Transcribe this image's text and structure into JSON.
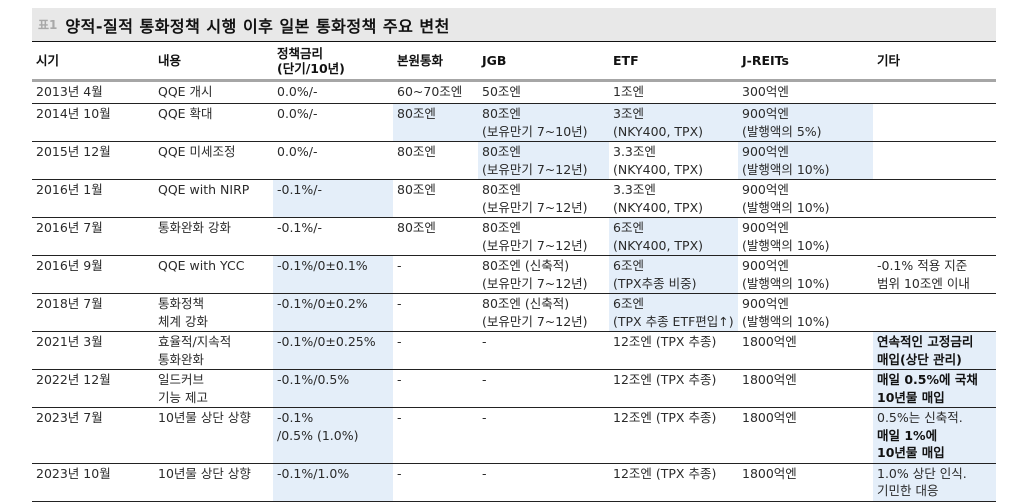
{
  "title": {
    "tag": "표1",
    "text": "양적-질적 통화정책 시행 이후 일본 통화정책 주요 변천"
  },
  "table": {
    "headers": [
      {
        "label": "시기"
      },
      {
        "label": "내용"
      },
      {
        "label": "정책금리",
        "label2": "(단기/10년)"
      },
      {
        "label": "본원통화"
      },
      {
        "label": "JGB"
      },
      {
        "label": "ETF"
      },
      {
        "label": "J-REITs"
      },
      {
        "label": "기타"
      }
    ],
    "highlight_color": "#e4eef9",
    "rows": [
      {
        "period": "2013년 4월",
        "content": [
          "QQE 개시"
        ],
        "rate": [
          "0.0%/-"
        ],
        "base": "60~70조엔",
        "jgb": [
          "50조엔"
        ],
        "etf": [
          "1조엔"
        ],
        "jreit": [
          "300억엔"
        ],
        "etc": []
      },
      {
        "period": "2014년 10월",
        "content": [
          "QQE 확대"
        ],
        "rate": [
          "0.0%/-"
        ],
        "base": "80조엔",
        "jgb": [
          "80조엔",
          "(보유만기 7~10년)"
        ],
        "etf": [
          "3조엔",
          "(NKY400, TPX)"
        ],
        "jreit": [
          "900억엔",
          "(발행액의 5%)"
        ],
        "etc": []
      },
      {
        "period": "2015년 12월",
        "content": [
          "QQE 미세조정"
        ],
        "rate": [
          "0.0%/-"
        ],
        "base": "80조엔",
        "jgb": [
          "80조엔",
          "(보유만기 7~12년)"
        ],
        "etf": [
          "3.3조엔",
          "(NKY400, TPX)"
        ],
        "jreit": [
          "900억엔",
          "(발행액의 10%)"
        ],
        "etc": []
      },
      {
        "period": "2016년 1월",
        "content": [
          "QQE with NIRP"
        ],
        "rate": [
          "-0.1%/-"
        ],
        "base": "80조엔",
        "jgb": [
          "80조엔",
          "(보유만기 7~12년)"
        ],
        "etf": [
          "3.3조엔",
          "(NKY400, TPX)"
        ],
        "jreit": [
          "900억엔",
          "(발행액의 10%)"
        ],
        "etc": []
      },
      {
        "period": "2016년 7월",
        "content": [
          "통화완화 강화"
        ],
        "rate": [
          "-0.1%/-"
        ],
        "base": "80조엔",
        "jgb": [
          "80조엔",
          "(보유만기 7~12년)"
        ],
        "etf": [
          "6조엔",
          "(NKY400, TPX)"
        ],
        "jreit": [
          "900억엔",
          "(발행액의 10%)"
        ],
        "etc": []
      },
      {
        "period": "2016년 9월",
        "content": [
          "QQE with YCC"
        ],
        "rate": [
          "-0.1%/0±0.1%"
        ],
        "base": "-",
        "jgb": [
          "80조엔 (신축적)",
          "(보유만기 7~12년)"
        ],
        "etf": [
          "6조엔",
          "(TPX추종 비중)"
        ],
        "jreit": [
          "900억엔",
          "(발행액의 10%)"
        ],
        "etc": [
          "-0.1% 적용 지준",
          "범위 10조엔 이내"
        ]
      },
      {
        "period": "2018년 7월",
        "content": [
          "통화정책",
          "체계 강화"
        ],
        "rate": [
          "-0.1%/0±0.2%"
        ],
        "base": "-",
        "jgb": [
          "80조엔 (신축적)",
          "(보유만기 7~12년)"
        ],
        "etf": [
          "6조엔",
          "(TPX 추종 ETF편입↑)"
        ],
        "jreit": [
          "900억엔",
          "(발행액의 10%)"
        ],
        "etc": []
      },
      {
        "period": "2021년 3월",
        "content": [
          "효율적/지속적",
          "통화완화"
        ],
        "rate": [
          "-0.1%/0±0.25%"
        ],
        "base": "-",
        "jgb": [
          "-"
        ],
        "etf": [
          "12조엔 (TPX 추종)"
        ],
        "jreit": [
          "1800억엔"
        ],
        "etc_bold": [
          "연속적인 고정금리",
          "매입(상단 관리)"
        ]
      },
      {
        "period": "2022년 12월",
        "content": [
          "일드커브",
          "기능 제고"
        ],
        "rate": [
          "-0.1%/0.5%"
        ],
        "base": "-",
        "jgb": [
          "-"
        ],
        "etf": [
          "12조엔 (TPX 추종)"
        ],
        "jreit": [
          "1800억엔"
        ],
        "etc_bold": [
          "매일 0.5%에 국채",
          "10년물 매입"
        ]
      },
      {
        "period": "2023년 7월",
        "content": [
          "10년물 상단 상향"
        ],
        "rate": [
          "-0.1%",
          "/0.5% (1.0%)"
        ],
        "base": "-",
        "jgb": [
          "-"
        ],
        "etf": [
          "12조엔 (TPX 추종)"
        ],
        "jreit": [
          "1800억엔"
        ],
        "etc": [
          "0.5%는 신축적."
        ],
        "etc_bold": [
          "매일 1%에",
          "10년물 매입"
        ]
      },
      {
        "period": "2023년 10월",
        "content": [
          "10년물 상단 상향"
        ],
        "rate": [
          "-0.1%/1.0%"
        ],
        "base": "-",
        "jgb": [
          "-"
        ],
        "etf": [
          "12조엔 (TPX 추종)"
        ],
        "jreit": [
          "1800억엔"
        ],
        "etc": [
          "1.0% 상단 인식.",
          "기민한 대응"
        ]
      }
    ]
  }
}
